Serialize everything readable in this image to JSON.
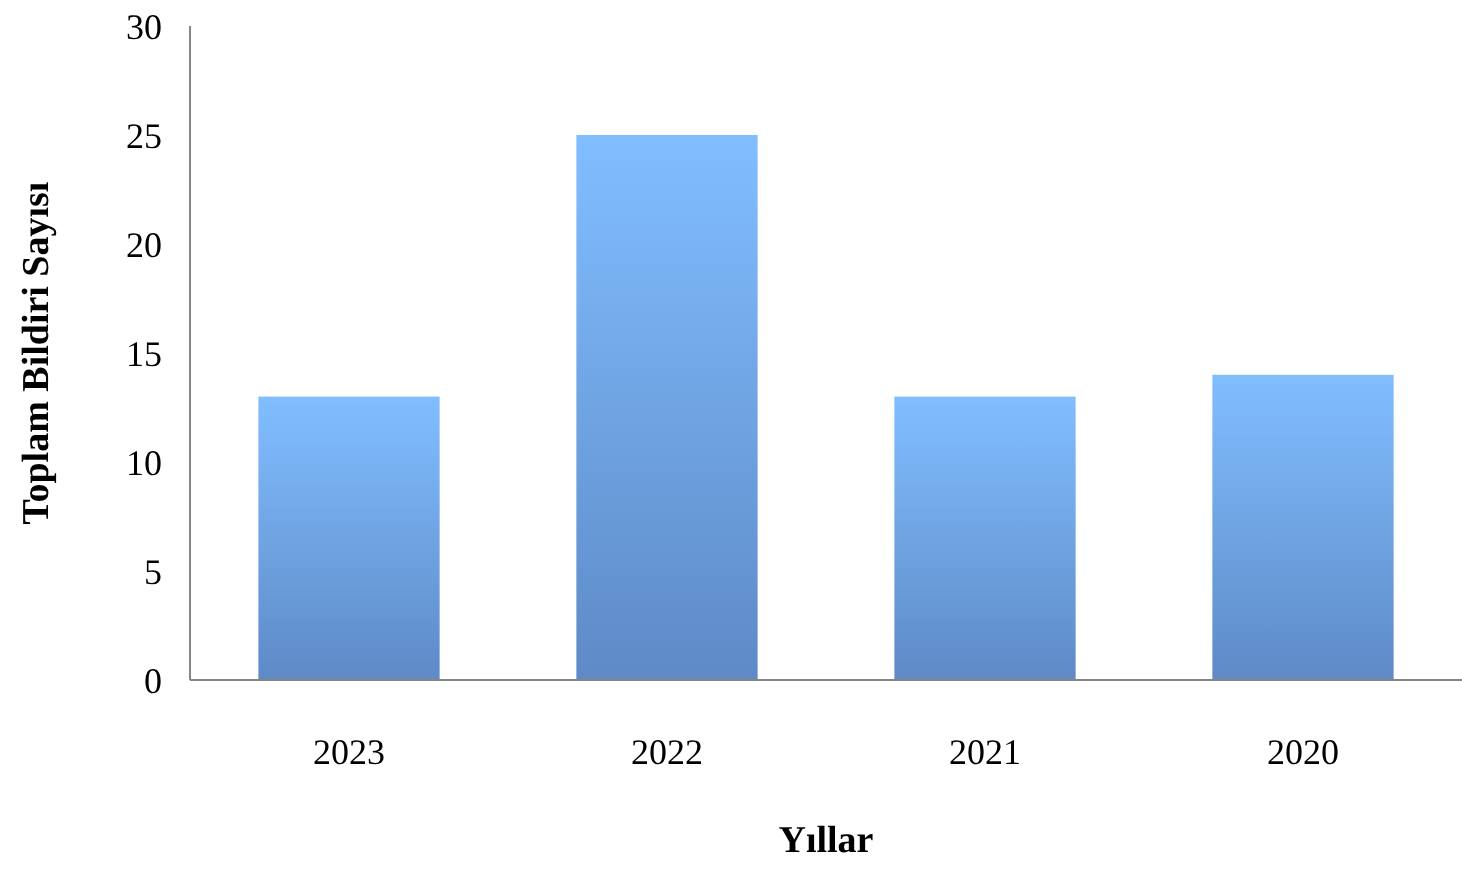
{
  "chart_data": {
    "type": "bar",
    "xlabel": "Yıllar",
    "ylabel": "Toplam Bildiri Sayısı",
    "categories": [
      "2023",
      "2022",
      "2021",
      "2020"
    ],
    "values": [
      13,
      25,
      13,
      14
    ],
    "color": "#6c9fe6",
    "ylim": [
      0,
      30
    ],
    "yticks": [
      0,
      5,
      10,
      15,
      20,
      25,
      30
    ],
    "grid": false
  }
}
